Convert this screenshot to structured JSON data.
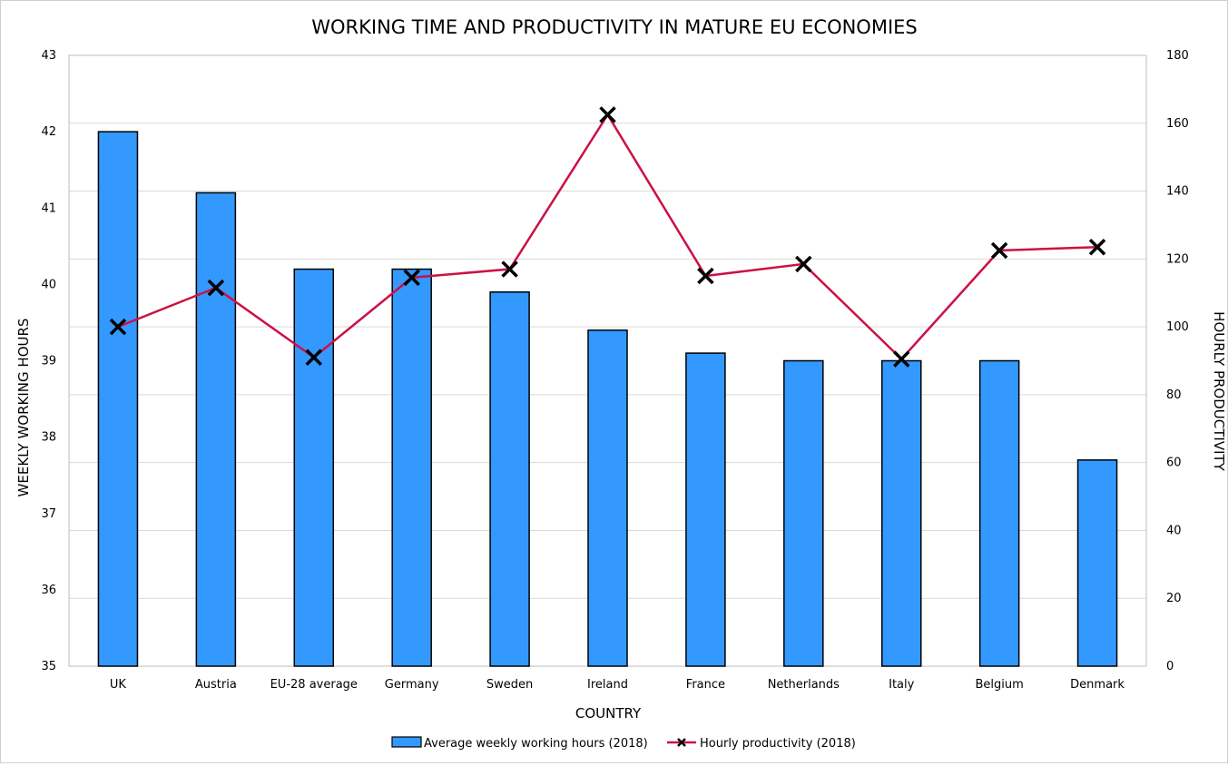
{
  "chart_data": {
    "type": "bar+line",
    "title": "WORKING TIME AND PRODUCTIVITY IN MATURE EU ECONOMIES",
    "xlabel": "COUNTRY",
    "ylabel_left": "WEEKLY WORKING HOURS",
    "ylabel_right": "HOURLY PRODUCTIVITY",
    "categories": [
      "UK",
      "Austria",
      "EU-28 average",
      "Germany",
      "Sweden",
      "Ireland",
      "France",
      "Netherlands",
      "Italy",
      "Belgium",
      "Denmark"
    ],
    "series": [
      {
        "name": "Average weekly working hours (2018)",
        "type": "bar",
        "axis": "left",
        "color": "#3399ff",
        "values": [
          42.0,
          41.2,
          40.2,
          40.2,
          39.9,
          39.4,
          39.1,
          39.0,
          39.0,
          39.0,
          37.7
        ]
      },
      {
        "name": "Hourly productivity (2018)",
        "type": "line",
        "axis": "right",
        "color": "#cc1144",
        "marker": "x",
        "values": [
          100,
          111.5,
          91,
          114.5,
          117,
          162.5,
          115,
          118.5,
          90.5,
          122.5,
          123.5
        ]
      }
    ],
    "ylim_left": [
      35,
      43
    ],
    "yticks_left": [
      35,
      36,
      37,
      38,
      39,
      40,
      41,
      42,
      43
    ],
    "ylim_right": [
      0,
      180
    ],
    "yticks_right": [
      0,
      20,
      40,
      60,
      80,
      100,
      120,
      140,
      160,
      180
    ],
    "grid": true,
    "legend_position": "bottom"
  }
}
